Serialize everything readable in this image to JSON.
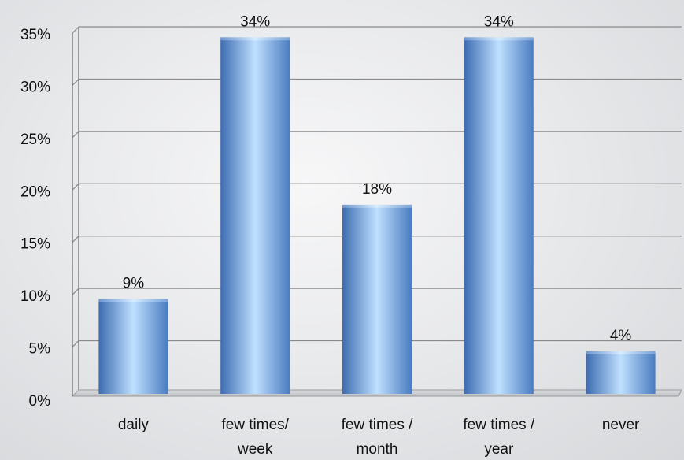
{
  "chart_data": {
    "type": "bar",
    "categories": [
      [
        "daily"
      ],
      [
        "few times/",
        "week"
      ],
      [
        "few times /",
        "month"
      ],
      [
        "few times /",
        "year"
      ],
      [
        "never"
      ]
    ],
    "values": [
      9,
      34,
      18,
      34,
      4
    ],
    "data_labels": [
      "9%",
      "34%",
      "18%",
      "34%",
      "4%"
    ],
    "y_ticks": [
      "0%",
      "5%",
      "10%",
      "15%",
      "20%",
      "25%",
      "30%",
      "35%"
    ],
    "ylim": [
      0,
      35
    ],
    "grid": true,
    "title": "",
    "xlabel": "",
    "ylabel": "",
    "colors": {
      "bar_edge": "#3f6fb4",
      "bar_center": "#b9dcff",
      "bar_top": "#8fb8ea",
      "grid": "#8a8a8a"
    }
  }
}
